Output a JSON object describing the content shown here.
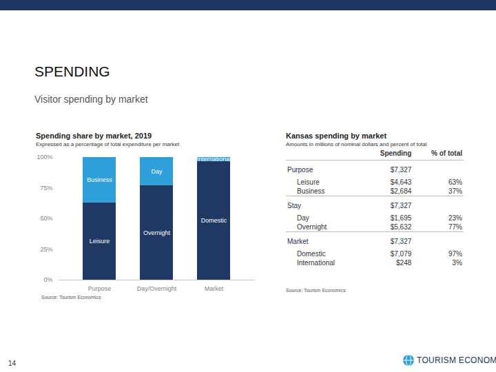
{
  "slide": {
    "header": "SPENDING",
    "subheader": "Visitor spending by market",
    "page_number": "14",
    "logo": "TOURISM ECONOMICS"
  },
  "chart_data": {
    "type": "bar",
    "stacked": true,
    "title": "Spending share by market, 2019",
    "subtitle": "Expressed as a percentage of total expenditure per market",
    "source": "Source: Tourism Economics",
    "categories": [
      "Purpose",
      "Day/Overnight",
      "Market"
    ],
    "series": [
      {
        "name": "Leisure",
        "color": "#1f3864",
        "values": [
          63,
          null,
          null
        ]
      },
      {
        "name": "Business",
        "color": "#2e9fd9",
        "values": [
          37,
          null,
          null
        ]
      },
      {
        "name": "Overnight",
        "color": "#1f3864",
        "values": [
          null,
          77,
          null
        ]
      },
      {
        "name": "Day",
        "color": "#2e9fd9",
        "values": [
          null,
          23,
          null
        ]
      },
      {
        "name": "Domestic",
        "color": "#1f3864",
        "values": [
          null,
          null,
          97
        ]
      },
      {
        "name": "International",
        "color": "#2e9fd9",
        "values": [
          null,
          null,
          3
        ]
      }
    ],
    "ylim": [
      0,
      100
    ],
    "yticks": [
      {
        "value": 0,
        "label": "0%"
      },
      {
        "value": 25,
        "label": "25%"
      },
      {
        "value": 50,
        "label": "50%"
      },
      {
        "value": 75,
        "label": "75%"
      },
      {
        "value": 100,
        "label": "100%"
      }
    ],
    "grid": false
  },
  "table": {
    "title": "Kansas spending by market",
    "subtitle": "Amounts in millions of nominal dollars and percent of total",
    "columns": [
      "Spending",
      "% of total"
    ],
    "sections": [
      {
        "label": "Purpose",
        "total": "$7,327",
        "rows": [
          [
            "Leisure",
            "$4,643",
            "63%"
          ],
          [
            "Business",
            "$2,684",
            "37%"
          ]
        ]
      },
      {
        "label": "Stay",
        "total": "$7,327",
        "rows": [
          [
            "Day",
            "$1,695",
            "23%"
          ],
          [
            "Overnight",
            "$5,632",
            "77%"
          ]
        ]
      },
      {
        "label": "Market",
        "total": "$7,327",
        "rows": [
          [
            "Domestic",
            "$7,079",
            "97%"
          ],
          [
            "International",
            "$248",
            "3%"
          ]
        ]
      }
    ],
    "source": "Source: Tourism Economics"
  }
}
